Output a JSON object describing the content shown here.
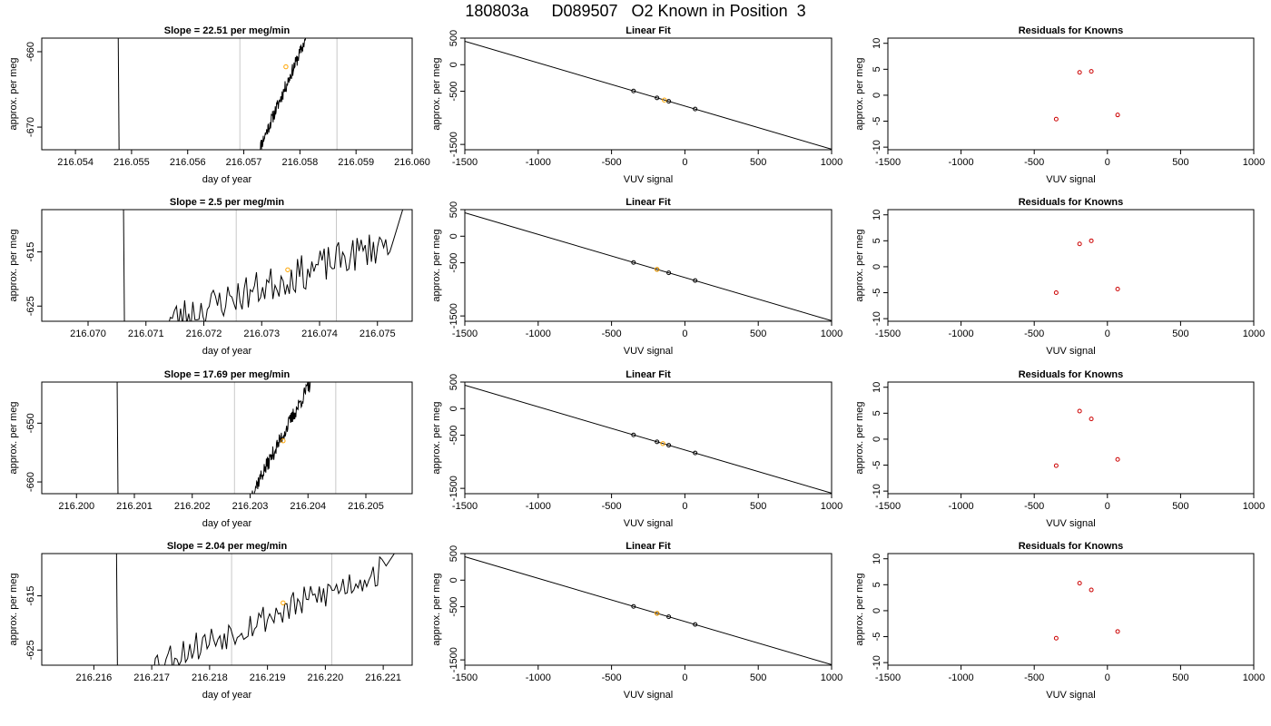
{
  "page": {
    "title": "180803a     D089507   O2 Known in Position  3"
  },
  "colors": {
    "axis": "#000000",
    "line": "#000000",
    "vline": "#c8c8c8",
    "marker_orange": "#ffa500",
    "marker_red": "#cc0000"
  },
  "rows": [
    {
      "left": {
        "type": "line",
        "title": "Slope =  22.51  per meg/min",
        "xlabel": "day of year",
        "ylabel": "approx. per meg",
        "xlim": [
          216.0534,
          216.06
        ],
        "ylim": [
          -673.0,
          -658.2
        ],
        "xticks": [
          216.054,
          216.055,
          216.056,
          216.057,
          216.058,
          216.059,
          216.06
        ],
        "xtick_labels": [
          "216.054",
          "216.055",
          "216.056",
          "216.057",
          "216.058",
          "216.059",
          "216.060"
        ],
        "yticks": [
          -660,
          -670
        ],
        "ytick_labels": [
          "-660",
          "-670"
        ],
        "vlines": [
          216.05693,
          216.05866
        ],
        "drop_x": 216.05478,
        "rise_start": [
          216.05727,
          -673.0
        ],
        "rise_end": [
          216.05811,
          -658.2
        ],
        "noise": 0.6,
        "seed": 11,
        "marker": [
          216.05775,
          -662.0
        ]
      },
      "middle": {
        "type": "scatter",
        "title": "Linear Fit",
        "xlabel": "VUV signal",
        "ylabel": "approx. per meg",
        "xlim": [
          -1500,
          1000
        ],
        "ylim": [
          -1600,
          500
        ],
        "xticks": [
          -1500,
          -1000,
          -500,
          0,
          500,
          1000
        ],
        "xtick_labels": [
          "-1500",
          "-1000",
          "-500",
          "0",
          "500",
          "1000"
        ],
        "yticks": [
          500,
          0,
          -500,
          -1500
        ],
        "ytick_labels": [
          "500",
          "0",
          "-500",
          "-1500"
        ],
        "line": [
          [
            -1500,
            440
          ],
          [
            1000,
            -1590
          ]
        ],
        "points": [
          [
            -350,
            -494
          ],
          [
            -190,
            -624
          ],
          [
            -110,
            -689
          ],
          [
            70,
            -834
          ]
        ],
        "orange": [
          [
            -140,
            -665
          ]
        ]
      },
      "right": {
        "type": "scatter",
        "title": "Residuals for Knowns",
        "xlabel": "VUV signal",
        "ylabel": "approx. per meg",
        "xlim": [
          -1500,
          1000
        ],
        "ylim": [
          -10.5,
          11
        ],
        "xticks": [
          -1500,
          -1000,
          -500,
          0,
          500,
          1000
        ],
        "xtick_labels": [
          "-1500",
          "-1000",
          "-500",
          "0",
          "500",
          "1000"
        ],
        "yticks": [
          10,
          5,
          0,
          -5,
          -10
        ],
        "ytick_labels": [
          "10",
          "5",
          "0",
          "-5",
          "-10"
        ],
        "points": [
          [
            -350,
            -4.6
          ],
          [
            -190,
            4.4
          ],
          [
            -110,
            4.6
          ],
          [
            70,
            -3.8
          ]
        ]
      }
    },
    {
      "left": {
        "type": "line",
        "title": "Slope =  2.5  per meg/min",
        "xlabel": "day of year",
        "ylabel": "approx. per meg",
        "xlim": [
          216.0692,
          216.0756
        ],
        "ylim": [
          -627.8,
          -607.2
        ],
        "xticks": [
          216.07,
          216.071,
          216.072,
          216.073,
          216.074,
          216.075
        ],
        "xtick_labels": [
          "216.070",
          "216.071",
          "216.072",
          "216.073",
          "216.074",
          "216.075"
        ],
        "yticks": [
          -615,
          -625
        ],
        "ytick_labels": [
          "-615",
          "-625"
        ],
        "vlines": [
          216.07256,
          216.07429
        ],
        "drop_x": 216.07063,
        "rise_start": [
          216.07135,
          -627.8
        ],
        "rise_end": [
          216.07525,
          -613.0
        ],
        "noise": 1.6,
        "seed": 23,
        "marker": [
          216.07345,
          -618.3
        ]
      },
      "middle": {
        "type": "scatter",
        "title": "Linear Fit",
        "xlabel": "VUV signal",
        "ylabel": "approx. per meg",
        "xlim": [
          -1500,
          1000
        ],
        "ylim": [
          -1600,
          500
        ],
        "xticks": [
          -1500,
          -1000,
          -500,
          0,
          500,
          1000
        ],
        "xtick_labels": [
          "-1500",
          "-1000",
          "-500",
          "0",
          "500",
          "1000"
        ],
        "yticks": [
          500,
          0,
          -500,
          -1500
        ],
        "ytick_labels": [
          "500",
          "0",
          "-500",
          "-1500"
        ],
        "line": [
          [
            -1500,
            440
          ],
          [
            1000,
            -1590
          ]
        ],
        "points": [
          [
            -350,
            -494
          ],
          [
            -190,
            -624
          ],
          [
            -110,
            -689
          ],
          [
            70,
            -834
          ]
        ],
        "orange": [
          [
            -190,
            -624
          ]
        ]
      },
      "right": {
        "type": "scatter",
        "title": "Residuals for Knowns",
        "xlabel": "VUV signal",
        "ylabel": "approx. per meg",
        "xlim": [
          -1500,
          1000
        ],
        "ylim": [
          -10.5,
          11
        ],
        "xticks": [
          -1500,
          -1000,
          -500,
          0,
          500,
          1000
        ],
        "xtick_labels": [
          "-1500",
          "-1000",
          "-500",
          "0",
          "500",
          "1000"
        ],
        "yticks": [
          10,
          5,
          0,
          -5,
          -10
        ],
        "ytick_labels": [
          "10",
          "5",
          "0",
          "-5",
          "-10"
        ],
        "points": [
          [
            -350,
            -5.0
          ],
          [
            -190,
            4.4
          ],
          [
            -110,
            5.0
          ],
          [
            70,
            -4.3
          ]
        ]
      }
    },
    {
      "left": {
        "type": "line",
        "title": "Slope =  17.69  per meg/min",
        "xlabel": "day of year",
        "ylabel": "approx. per meg",
        "xlim": [
          216.1994,
          216.2058
        ],
        "ylim": [
          -662.0,
          -643.0
        ],
        "xticks": [
          216.2,
          216.201,
          216.202,
          216.203,
          216.204,
          216.205
        ],
        "xtick_labels": [
          "216.200",
          "216.201",
          "216.202",
          "216.203",
          "216.204",
          "216.205"
        ],
        "yticks": [
          -650,
          -660
        ],
        "ytick_labels": [
          "-650",
          "-660"
        ],
        "vlines": [
          216.20273,
          216.20448
        ],
        "drop_x": 216.20072,
        "rise_start": [
          216.20303,
          -662.0
        ],
        "rise_end": [
          216.20405,
          -643.0
        ],
        "noise": 0.7,
        "seed": 37,
        "marker": [
          216.20357,
          -653.0
        ]
      },
      "middle": {
        "type": "scatter",
        "title": "Linear Fit",
        "xlabel": "VUV signal",
        "ylabel": "approx. per meg",
        "xlim": [
          -1500,
          1000
        ],
        "ylim": [
          -1600,
          500
        ],
        "xticks": [
          -1500,
          -1000,
          -500,
          0,
          500,
          1000
        ],
        "xtick_labels": [
          "-1500",
          "-1000",
          "-500",
          "0",
          "500",
          "1000"
        ],
        "yticks": [
          500,
          0,
          -500,
          -1500
        ],
        "ytick_labels": [
          "500",
          "0",
          "-500",
          "-1500"
        ],
        "line": [
          [
            -1500,
            440
          ],
          [
            1000,
            -1590
          ]
        ],
        "points": [
          [
            -350,
            -494
          ],
          [
            -190,
            -624
          ],
          [
            -110,
            -689
          ],
          [
            70,
            -834
          ]
        ],
        "orange": [
          [
            -150,
            -657
          ]
        ]
      },
      "right": {
        "type": "scatter",
        "title": "Residuals for Knowns",
        "xlabel": "VUV signal",
        "ylabel": "approx. per meg",
        "xlim": [
          -1500,
          1000
        ],
        "ylim": [
          -10.5,
          11
        ],
        "xticks": [
          -1500,
          -1000,
          -500,
          0,
          500,
          1000
        ],
        "xtick_labels": [
          "-1500",
          "-1000",
          "-500",
          "0",
          "500",
          "1000"
        ],
        "yticks": [
          10,
          5,
          0,
          -5,
          -10
        ],
        "ytick_labels": [
          "10",
          "5",
          "0",
          "-5",
          "-10"
        ],
        "points": [
          [
            -350,
            -5.1
          ],
          [
            -190,
            5.4
          ],
          [
            -110,
            3.9
          ],
          [
            70,
            -3.9
          ]
        ]
      }
    },
    {
      "left": {
        "type": "line",
        "title": "Slope =  2.04  per meg/min",
        "xlabel": "day of year",
        "ylabel": "approx. per meg",
        "xlim": [
          216.2151,
          216.2215
        ],
        "ylim": [
          -627.8,
          -607.2
        ],
        "xticks": [
          216.216,
          216.217,
          216.218,
          216.219,
          216.22,
          216.221
        ],
        "xtick_labels": [
          "216.216",
          "216.217",
          "216.218",
          "216.219",
          "216.220",
          "216.221"
        ],
        "yticks": [
          -615,
          -625
        ],
        "ytick_labels": [
          "-615",
          "-625"
        ],
        "vlines": [
          216.21838,
          216.22011
        ],
        "drop_x": 216.21641,
        "rise_start": [
          216.21695,
          -627.8
        ],
        "rise_end": [
          216.22105,
          -610.0
        ],
        "noise": 1.4,
        "seed": 53,
        "marker": [
          216.21927,
          -616.3
        ]
      },
      "middle": {
        "type": "scatter",
        "title": "Linear Fit",
        "xlabel": "VUV signal",
        "ylabel": "approx. per meg",
        "xlim": [
          -1500,
          1000
        ],
        "ylim": [
          -1600,
          500
        ],
        "xticks": [
          -1500,
          -1000,
          -500,
          0,
          500,
          1000
        ],
        "xtick_labels": [
          "-1500",
          "-1000",
          "-500",
          "0",
          "500",
          "1000"
        ],
        "yticks": [
          500,
          0,
          -500,
          -1500
        ],
        "ytick_labels": [
          "500",
          "0",
          "-500",
          "-1500"
        ],
        "line": [
          [
            -1500,
            440
          ],
          [
            1000,
            -1590
          ]
        ],
        "points": [
          [
            -350,
            -494
          ],
          [
            -190,
            -624
          ],
          [
            -110,
            -689
          ],
          [
            70,
            -834
          ]
        ],
        "orange": [
          [
            -190,
            -624
          ]
        ]
      },
      "right": {
        "type": "scatter",
        "title": "Residuals for Knowns",
        "xlabel": "VUV signal",
        "ylabel": "approx. per meg",
        "xlim": [
          -1500,
          1000
        ],
        "ylim": [
          -10.5,
          11
        ],
        "xticks": [
          -1500,
          -1000,
          -500,
          0,
          500,
          1000
        ],
        "xtick_labels": [
          "-1500",
          "-1000",
          "-500",
          "0",
          "500",
          "1000"
        ],
        "yticks": [
          10,
          5,
          0,
          -5,
          -10
        ],
        "ytick_labels": [
          "10",
          "5",
          "0",
          "-5",
          "-10"
        ],
        "points": [
          [
            -350,
            -5.3
          ],
          [
            -190,
            5.3
          ],
          [
            -110,
            4.0
          ],
          [
            70,
            -4.0
          ]
        ]
      }
    }
  ],
  "chart_data": [
    {
      "type": "line",
      "title": "Slope =  22.51  per meg/min",
      "xlabel": "day of year",
      "ylabel": "approx. per meg",
      "xlim": [
        216.0534,
        216.06
      ],
      "ylim": [
        -673.0,
        -658.2
      ],
      "vlines": [
        216.05693,
        216.05866
      ],
      "marker": [
        216.05775,
        -662.0
      ]
    },
    {
      "type": "scatter",
      "title": "Linear Fit",
      "xlabel": "VUV signal",
      "ylabel": "approx. per meg",
      "xlim": [
        -1500,
        1000
      ],
      "ylim": [
        -1600,
        500
      ],
      "line": [
        [
          -1500,
          440
        ],
        [
          1000,
          -1590
        ]
      ],
      "points": [
        [
          -350,
          -494
        ],
        [
          -190,
          -624
        ],
        [
          -110,
          -689
        ],
        [
          70,
          -834
        ]
      ]
    },
    {
      "type": "scatter",
      "title": "Residuals for Knowns",
      "xlabel": "VUV signal",
      "ylabel": "approx. per meg",
      "xlim": [
        -1500,
        1000
      ],
      "ylim": [
        -10.5,
        11
      ],
      "points": [
        [
          -350,
          -4.6
        ],
        [
          -190,
          4.4
        ],
        [
          -110,
          4.6
        ],
        [
          70,
          -3.8
        ]
      ]
    },
    {
      "type": "line",
      "title": "Slope =  2.5  per meg/min",
      "xlabel": "day of year",
      "ylabel": "approx. per meg",
      "xlim": [
        216.0692,
        216.0756
      ],
      "ylim": [
        -627.8,
        -607.2
      ],
      "vlines": [
        216.07256,
        216.07429
      ],
      "marker": [
        216.07345,
        -618.3
      ]
    },
    {
      "type": "scatter",
      "title": "Linear Fit",
      "xlabel": "VUV signal",
      "ylabel": "approx. per meg",
      "xlim": [
        -1500,
        1000
      ],
      "ylim": [
        -1600,
        500
      ],
      "line": [
        [
          -1500,
          440
        ],
        [
          1000,
          -1590
        ]
      ],
      "points": [
        [
          -350,
          -494
        ],
        [
          -190,
          -624
        ],
        [
          -110,
          -689
        ],
        [
          70,
          -834
        ]
      ]
    },
    {
      "type": "scatter",
      "title": "Residuals for Knowns",
      "xlabel": "VUV signal",
      "ylabel": "approx. per meg",
      "xlim": [
        -1500,
        1000
      ],
      "ylim": [
        -10.5,
        11
      ],
      "points": [
        [
          -350,
          -5.0
        ],
        [
          -190,
          4.4
        ],
        [
          -110,
          5.0
        ],
        [
          70,
          -4.3
        ]
      ]
    },
    {
      "type": "line",
      "title": "Slope =  17.69  per meg/min",
      "xlabel": "day of year",
      "ylabel": "approx. per meg",
      "xlim": [
        216.1994,
        216.2058
      ],
      "ylim": [
        -662.0,
        -643.0
      ],
      "vlines": [
        216.20273,
        216.20448
      ],
      "marker": [
        216.20357,
        -653.0
      ]
    },
    {
      "type": "scatter",
      "title": "Linear Fit",
      "xlabel": "VUV signal",
      "ylabel": "approx. per meg",
      "xlim": [
        -1500,
        1000
      ],
      "ylim": [
        -1600,
        500
      ],
      "line": [
        [
          -1500,
          440
        ],
        [
          1000,
          -1590
        ]
      ],
      "points": [
        [
          -350,
          -494
        ],
        [
          -190,
          -624
        ],
        [
          -110,
          -689
        ],
        [
          70,
          -834
        ]
      ]
    },
    {
      "type": "scatter",
      "title": "Residuals for Knowns",
      "xlabel": "VUV signal",
      "ylabel": "approx. per meg",
      "xlim": [
        -1500,
        1000
      ],
      "ylim": [
        -10.5,
        11
      ],
      "points": [
        [
          -350,
          -5.1
        ],
        [
          -190,
          5.4
        ],
        [
          -110,
          3.9
        ],
        [
          70,
          -3.9
        ]
      ]
    },
    {
      "type": "line",
      "title": "Slope =  2.04  per meg/min",
      "xlabel": "day of year",
      "ylabel": "approx. per meg",
      "xlim": [
        216.2151,
        216.2215
      ],
      "ylim": [
        -627.8,
        -607.2
      ],
      "vlines": [
        216.21838,
        216.22011
      ],
      "marker": [
        216.21927,
        -616.3
      ]
    },
    {
      "type": "scatter",
      "title": "Linear Fit",
      "xlabel": "VUV signal",
      "ylabel": "approx. per meg",
      "xlim": [
        -1500,
        1000
      ],
      "ylim": [
        -1600,
        500
      ],
      "line": [
        [
          -1500,
          440
        ],
        [
          1000,
          -1590
        ]
      ],
      "points": [
        [
          -350,
          -494
        ],
        [
          -190,
          -624
        ],
        [
          -110,
          -689
        ],
        [
          70,
          -834
        ]
      ]
    },
    {
      "type": "scatter",
      "title": "Residuals for Knowns",
      "xlabel": "VUV signal",
      "ylabel": "approx. per meg",
      "xlim": [
        -1500,
        1000
      ],
      "ylim": [
        -10.5,
        11
      ],
      "points": [
        [
          -350,
          -5.3
        ],
        [
          -190,
          5.3
        ],
        [
          -110,
          4.0
        ],
        [
          70,
          -4.0
        ]
      ]
    }
  ]
}
